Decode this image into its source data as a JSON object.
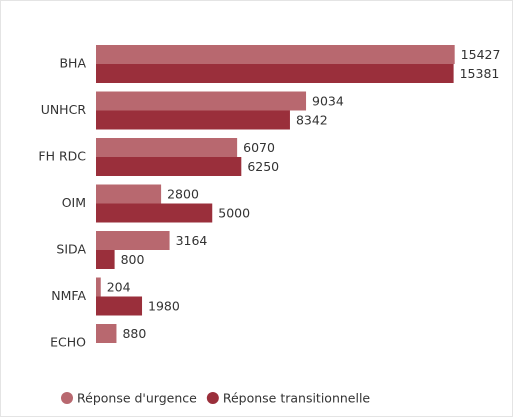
{
  "chart_data": {
    "type": "hbar",
    "categories": [
      "BHA",
      "UNHCR",
      "FH RDC",
      "OIM",
      "SIDA",
      "NMFA",
      "ECHO"
    ],
    "series": [
      {
        "name": "Réponse d'urgence",
        "color": "#b8686f",
        "values": [
          15427,
          9034,
          6070,
          2800,
          3164,
          204,
          880
        ]
      },
      {
        "name": "Réponse transitionnelle",
        "color": "#9a2f3b",
        "values": [
          15381,
          8342,
          6250,
          5000,
          800,
          1980,
          null
        ]
      }
    ],
    "xlim": [
      0,
      16000
    ],
    "legend": "bottom"
  }
}
